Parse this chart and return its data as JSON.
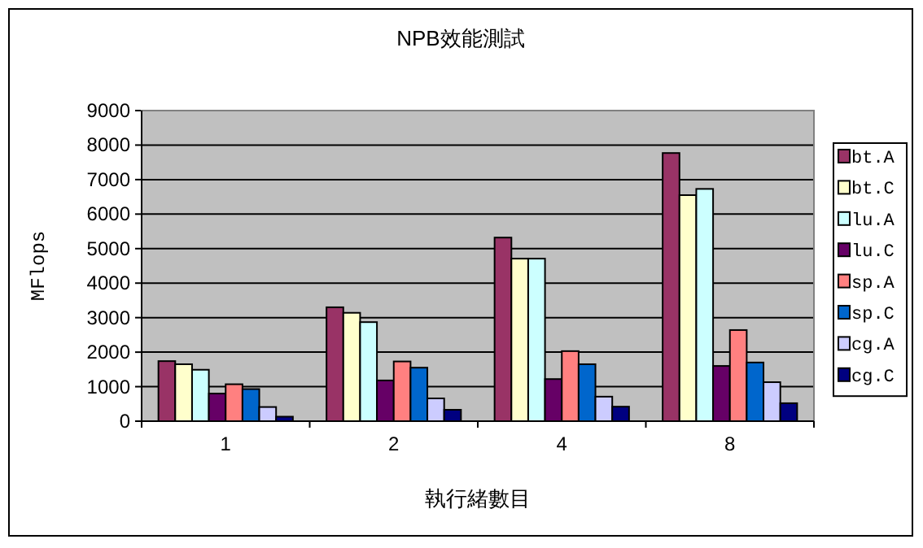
{
  "chart_data": {
    "type": "bar",
    "title": "NPB效能測試",
    "xlabel": "執行緒數目",
    "ylabel": "MFlops",
    "categories": [
      "1",
      "2",
      "4",
      "8"
    ],
    "series": [
      {
        "name": "bt.A",
        "color": "#993366",
        "values": [
          1740,
          3300,
          5320,
          7770
        ]
      },
      {
        "name": "bt.C",
        "color": "#ffffcc",
        "values": [
          1650,
          3140,
          4710,
          6550
        ]
      },
      {
        "name": "lu.A",
        "color": "#ccffff",
        "values": [
          1490,
          2870,
          4710,
          6730
        ]
      },
      {
        "name": "lu.C",
        "color": "#660066",
        "values": [
          800,
          1180,
          1220,
          1600
        ]
      },
      {
        "name": "sp.A",
        "color": "#ff8080",
        "values": [
          1070,
          1730,
          2030,
          2640
        ]
      },
      {
        "name": "sp.C",
        "color": "#0066cc",
        "values": [
          930,
          1550,
          1650,
          1700
        ]
      },
      {
        "name": "cg.A",
        "color": "#ccccff",
        "values": [
          410,
          660,
          710,
          1130
        ]
      },
      {
        "name": "cg.C",
        "color": "#000080",
        "values": [
          130,
          330,
          420,
          520
        ]
      }
    ],
    "ylim": [
      0,
      9000
    ],
    "yticks": [
      0,
      1000,
      2000,
      3000,
      4000,
      5000,
      6000,
      7000,
      8000,
      9000
    ],
    "grid": "y",
    "legend": "right"
  }
}
